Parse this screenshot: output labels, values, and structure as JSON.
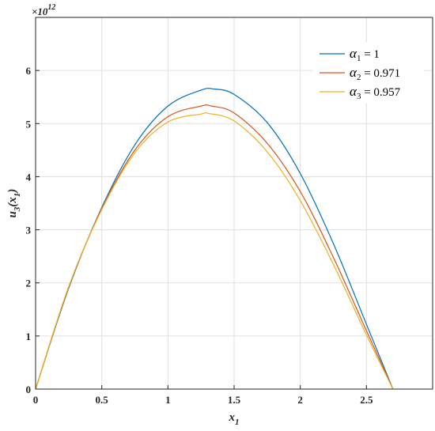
{
  "chart_data": {
    "type": "line",
    "xlabel": "x",
    "xlabel_sub": "1",
    "ylabel": "u",
    "ylabel_sub": "3",
    "ylabel_arg": "x",
    "ylabel_arg_sub": "1",
    "y_exponent_base": "×10",
    "y_exponent_power": "12",
    "xlim": [
      0,
      3.0
    ],
    "ylim": [
      0,
      7
    ],
    "xticks": [
      "0",
      "0.5",
      "1",
      "1.5",
      "2",
      "2.5"
    ],
    "yticks": [
      "0",
      "1",
      "2",
      "3",
      "4",
      "5",
      "6"
    ],
    "grid": true,
    "legend_position": "top-right",
    "series": [
      {
        "name_symbol": "α",
        "name_sub": "1",
        "name_value": " = 1",
        "color": "#0072BD",
        "x": [
          0,
          0.25,
          0.5,
          0.75,
          1.0,
          1.25,
          1.35,
          1.5,
          1.75,
          2.0,
          2.25,
          2.5,
          2.7
        ],
        "y": [
          0,
          1.9,
          3.42,
          4.6,
          5.33,
          5.63,
          5.65,
          5.55,
          5.02,
          4.06,
          2.74,
          1.22,
          0
        ]
      },
      {
        "name_symbol": "α",
        "name_sub": "2",
        "name_value": " = 0.971",
        "color": "#D95319",
        "x": [
          0,
          0.25,
          0.5,
          0.75,
          1.0,
          1.25,
          1.33,
          1.5,
          1.75,
          2.0,
          2.25,
          2.5,
          2.7
        ],
        "y": [
          0,
          1.92,
          3.4,
          4.5,
          5.13,
          5.33,
          5.33,
          5.2,
          4.63,
          3.72,
          2.48,
          1.1,
          0
        ]
      },
      {
        "name_symbol": "α",
        "name_sub": "3",
        "name_value": " = 0.957",
        "color": "#EDB120",
        "x": [
          0,
          0.25,
          0.5,
          0.75,
          1.0,
          1.25,
          1.31,
          1.5,
          1.75,
          2.0,
          2.25,
          2.5,
          2.7
        ],
        "y": [
          0,
          1.93,
          3.38,
          4.45,
          5.03,
          5.18,
          5.19,
          5.05,
          4.47,
          3.55,
          2.35,
          1.02,
          0
        ]
      }
    ]
  }
}
